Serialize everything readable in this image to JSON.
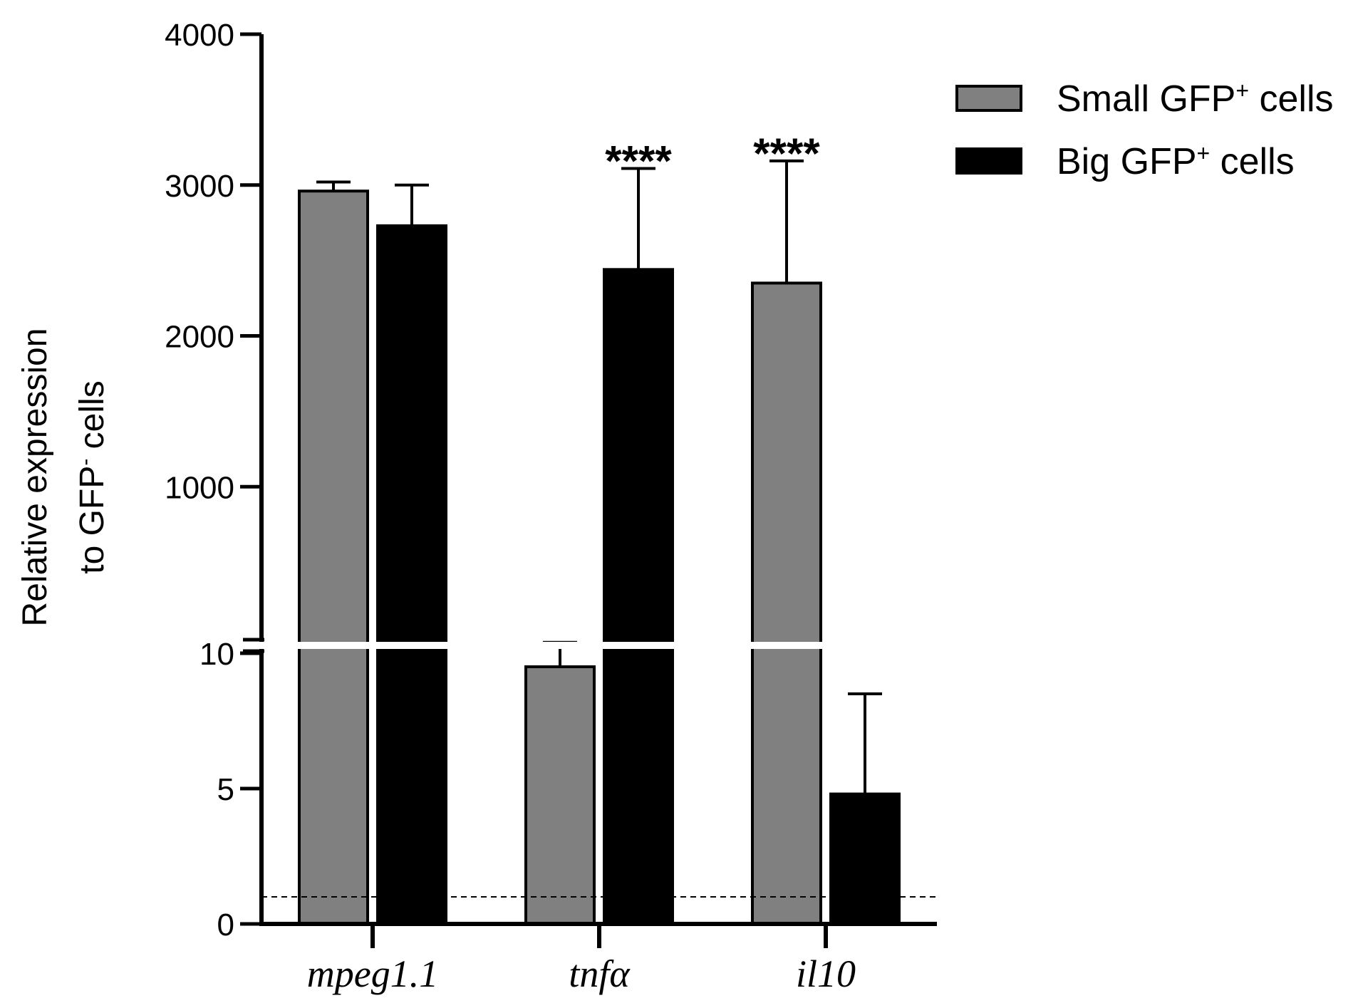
{
  "chart_data": {
    "type": "bar",
    "title": "",
    "xlabel": "",
    "ylabel": {
      "line1": "Relative expression",
      "line2_prefix": "to GFP",
      "line2_superscript": "-",
      "line2_suffix": " cells"
    },
    "categories": [
      "mpeg1.1",
      "tnfα",
      "il10"
    ],
    "series": [
      {
        "name": "Small GFP+ cells",
        "label_prefix": "Small GFP",
        "label_superscript": "+",
        "label_suffix": " cells",
        "color": "#808080",
        "values": [
          2960,
          9.5,
          2350
        ],
        "errors": [
          60,
          0.9,
          810
        ]
      },
      {
        "name": "Big GFP+ cells",
        "label_prefix": "Big GFP",
        "label_superscript": "+",
        "label_suffix": " cells",
        "color": "#000000",
        "values": [
          2730,
          2440,
          4.8
        ],
        "errors": [
          270,
          670,
          3.7
        ]
      }
    ],
    "significance": [
      {
        "category_index": 1,
        "series_index": 1,
        "label": "****"
      },
      {
        "category_index": 2,
        "series_index": 0,
        "label": "****"
      }
    ],
    "axis": {
      "type": "broken",
      "lower_segment": {
        "min": 0,
        "max": 10,
        "ticks": [
          "0",
          "5",
          "10"
        ],
        "tick_values": [
          0,
          5,
          10
        ]
      },
      "upper_segment": {
        "min": 0,
        "max": 4000,
        "ticks": [
          "1000",
          "2000",
          "3000",
          "4000"
        ],
        "tick_values": [
          1000,
          2000,
          3000,
          4000
        ]
      }
    },
    "reference_line": {
      "value": 1,
      "style": "dashed"
    },
    "legend_placement": "top-right"
  }
}
